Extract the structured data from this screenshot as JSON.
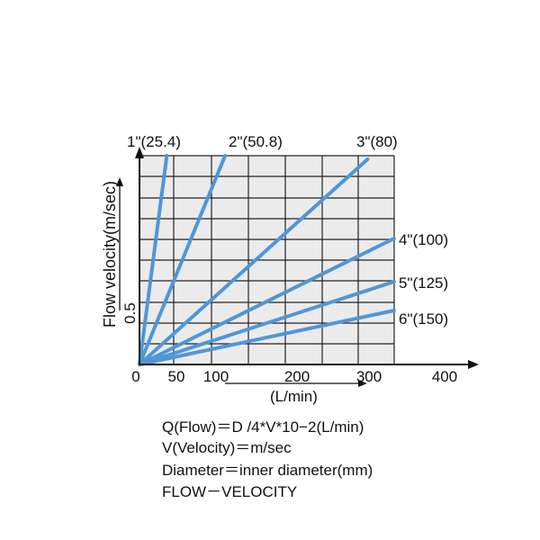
{
  "chart_data": {
    "type": "line",
    "title": "",
    "xlabel": "(L/min)",
    "ylabel": "Flow velocity(m/sec)",
    "x_ticks": [
      "0",
      "50",
      "100",
      "200",
      "300",
      "400"
    ],
    "y_ticks": [
      "0.5"
    ],
    "series": [
      {
        "name": "1\"(25.4)",
        "points": [
          [
            0,
            0
          ],
          [
            37,
            5.8
          ]
        ]
      },
      {
        "name": "2\"(50.8)",
        "points": [
          [
            0,
            0
          ],
          [
            116,
            5.8
          ]
        ]
      },
      {
        "name": "3\"(80)",
        "points": [
          [
            0,
            0
          ],
          [
            309,
            5.7
          ]
        ]
      },
      {
        "name": "4\"(100)",
        "points": [
          [
            0,
            0
          ],
          [
            345,
            3.5
          ]
        ]
      },
      {
        "name": "5\"(125)",
        "points": [
          [
            0,
            0
          ],
          [
            345,
            2.3
          ]
        ]
      },
      {
        "name": "6\"(150)",
        "points": [
          [
            0,
            0
          ],
          [
            345,
            1.5
          ]
        ]
      }
    ],
    "line_color": "#4f97d6",
    "grid": true
  },
  "formula": {
    "line1": "Q(Flow)＝D /4*V*10−2(L/min)",
    "line2": "V(Velocity)＝m/sec",
    "line3": "Diameter＝inner diameter(mm)",
    "line4": "FLOW－VELOCITY"
  }
}
